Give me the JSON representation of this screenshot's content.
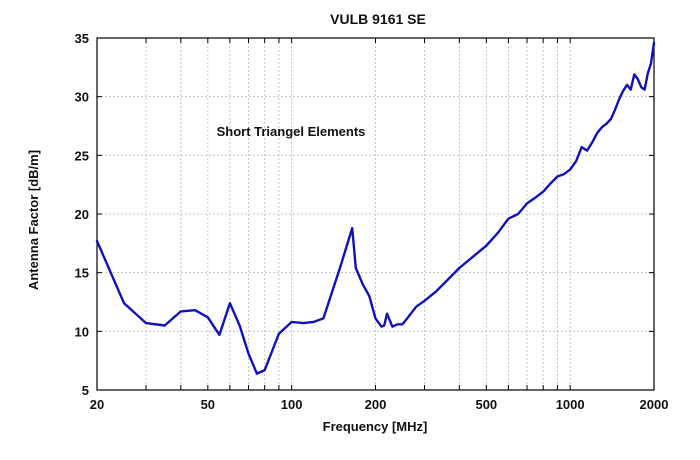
{
  "chart_data": {
    "type": "line",
    "title": "VULB 9161 SE",
    "annotation": "Short Triangel Elements",
    "xlabel": "Frequency [MHz]",
    "ylabel": "Antenna Factor [dB/m]",
    "x_scale": "log",
    "xlim": [
      20,
      2000
    ],
    "ylim": [
      5,
      35
    ],
    "grid": true,
    "x_tick_labels": [
      {
        "value": 20,
        "label": "20"
      },
      {
        "value": 50,
        "label": "50"
      },
      {
        "value": 100,
        "label": "100"
      },
      {
        "value": 200,
        "label": "200"
      },
      {
        "value": 500,
        "label": "500"
      },
      {
        "value": 1000,
        "label": "1000"
      },
      {
        "value": 2000,
        "label": "2000"
      }
    ],
    "x_grid_values": [
      20,
      30,
      40,
      50,
      60,
      70,
      80,
      90,
      100,
      200,
      300,
      400,
      500,
      600,
      700,
      800,
      900,
      1000,
      2000
    ],
    "y_ticks": [
      5,
      10,
      15,
      20,
      25,
      30,
      35
    ],
    "colors": {
      "series": "#1111bb",
      "grid": "#b8b8b8"
    },
    "series": [
      {
        "x": [
          20,
          25,
          30,
          35,
          40,
          45,
          50,
          55,
          60,
          65,
          70,
          75,
          80,
          90,
          100,
          110,
          120,
          130,
          150,
          165,
          170,
          180,
          190,
          200,
          210,
          215,
          220,
          230,
          240,
          250,
          260,
          280,
          300,
          330,
          360,
          400,
          450,
          500,
          550,
          600,
          650,
          700,
          750,
          800,
          850,
          900,
          950,
          1000,
          1050,
          1100,
          1150,
          1200,
          1250,
          1300,
          1350,
          1400,
          1450,
          1500,
          1550,
          1600,
          1650,
          1700,
          1750,
          1800,
          1850,
          1900,
          1950,
          2000
        ],
        "y": [
          17.7,
          12.4,
          10.7,
          10.5,
          11.7,
          11.8,
          11.2,
          9.7,
          12.4,
          10.5,
          8.1,
          6.4,
          6.7,
          9.8,
          10.8,
          10.7,
          10.8,
          11.1,
          15.6,
          18.8,
          15.4,
          14.0,
          13.0,
          11.1,
          10.4,
          10.5,
          11.5,
          10.4,
          10.6,
          10.6,
          11.1,
          12.1,
          12.6,
          13.4,
          14.3,
          15.4,
          16.4,
          17.3,
          18.4,
          19.6,
          20.0,
          20.9,
          21.4,
          21.9,
          22.6,
          23.2,
          23.4,
          23.8,
          24.5,
          25.7,
          25.4,
          26.1,
          26.9,
          27.4,
          27.7,
          28.1,
          28.9,
          29.8,
          30.5,
          31.0,
          30.6,
          31.9,
          31.5,
          30.8,
          30.6,
          32.0,
          32.8,
          34.6
        ]
      }
    ]
  }
}
